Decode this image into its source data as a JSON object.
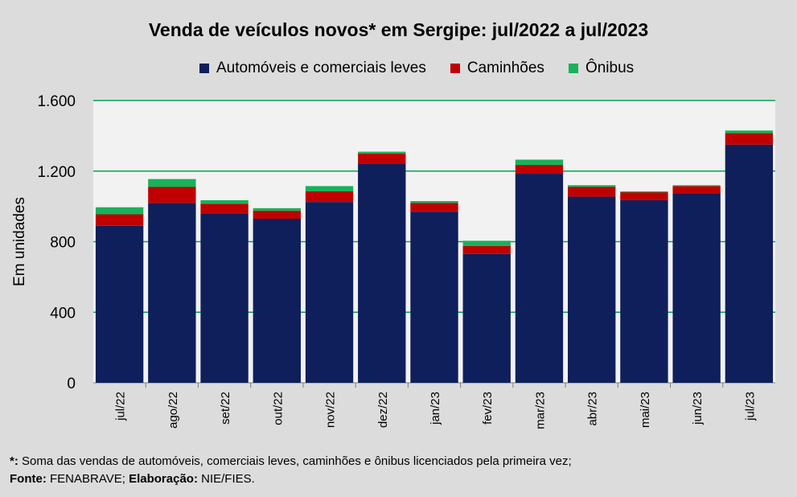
{
  "chart_data": {
    "type": "bar",
    "stacked": true,
    "title": "Venda de veículos novos* em Sergipe: jul/2022 a jul/2023",
    "xlabel": "",
    "ylabel": "Em unidades",
    "ylim": [
      0,
      1600
    ],
    "yticks": [
      0,
      400,
      800,
      1200,
      1600
    ],
    "ytick_labels": [
      "0",
      "400",
      "800",
      "1.200",
      "1.600"
    ],
    "categories": [
      "jul/22",
      "ago/22",
      "set/22",
      "out/22",
      "nov/22",
      "dez/22",
      "jan/23",
      "fev/23",
      "mar/23",
      "abr/23",
      "mai/23",
      "jun/23",
      "jul/23"
    ],
    "series": [
      {
        "name": "Automóveis e comerciais leves",
        "color": "#0f1f5c",
        "values": [
          890,
          1020,
          960,
          930,
          1025,
          1240,
          970,
          730,
          1185,
          1055,
          1035,
          1075,
          1350
        ]
      },
      {
        "name": "Caminhões",
        "color": "#c00000",
        "values": [
          65,
          90,
          55,
          45,
          60,
          60,
          50,
          45,
          50,
          55,
          45,
          40,
          65
        ]
      },
      {
        "name": "Ônibus",
        "color": "#19b159",
        "values": [
          40,
          45,
          20,
          15,
          30,
          10,
          10,
          30,
          30,
          10,
          5,
          5,
          15
        ]
      }
    ],
    "legend": "top"
  },
  "footnote": {
    "marker": "*:",
    "text": " Soma das vendas de automóveis, comerciais leves, caminhões e ônibus licenciados pela primeira vez;",
    "source_label": "Fonte:",
    "source": " FENABRAVE;",
    "elab_label": "Elaboração:",
    "elab": " NIE/FIES."
  },
  "colors": {
    "grid": "#00a651",
    "plot_bg": "#f2f2f2"
  }
}
